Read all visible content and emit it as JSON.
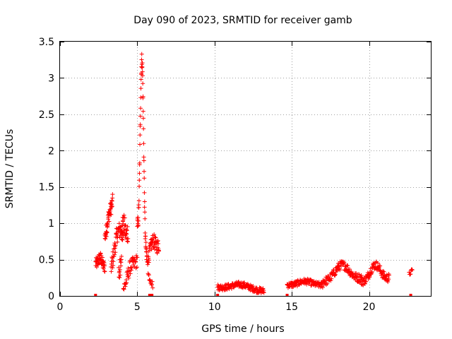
{
  "chart_data": {
    "type": "scatter",
    "title": "Day 090 of 2023, SRMTID for receiver gamb",
    "xlabel": "GPS time / hours",
    "ylabel": "SRMTID / TECUs",
    "xlim": [
      0,
      24
    ],
    "ylim": [
      0,
      3.5
    ],
    "x_ticks": [
      0,
      5,
      10,
      15,
      20
    ],
    "x_tick_labels": [
      "0",
      "5",
      "10",
      "15",
      "20"
    ],
    "y_ticks": [
      0,
      0.5,
      1,
      1.5,
      2,
      2.5,
      3,
      3.5
    ],
    "y_tick_labels": [
      "0",
      "0.5",
      "1",
      "1.5",
      "2",
      "2.5",
      "3",
      "3.5"
    ],
    "grid": true,
    "marker": "+",
    "color": "#ff0000",
    "zero_squares_x": [
      2.3,
      5.8,
      5.95,
      10.2,
      14.7,
      22.7
    ],
    "clusters": [
      {
        "name": "arc-1",
        "x_start": 2.3,
        "x_end": 2.9,
        "y_start": 0.45,
        "y_end": 0.4,
        "y_peak": 0.55,
        "spread": 0.08,
        "count": 50
      },
      {
        "name": "arc-2",
        "x_start": 2.9,
        "x_end": 3.4,
        "y_start": 0.8,
        "y_end": 1.3,
        "y_peak": 1.35,
        "spread": 0.1,
        "count": 45
      },
      {
        "name": "arc-3",
        "x_start": 3.3,
        "x_end": 4.1,
        "y_start": 0.4,
        "y_end": 1.0,
        "y_peak": 1.15,
        "spread": 0.12,
        "count": 55
      },
      {
        "name": "arc-4",
        "x_start": 3.8,
        "x_end": 4.4,
        "y_start": 0.3,
        "y_end": 0.9,
        "y_peak": 1.25,
        "spread": 0.15,
        "count": 45
      },
      {
        "name": "arc-5",
        "x_start": 4.1,
        "x_end": 5.0,
        "y_start": 0.1,
        "y_end": 0.5,
        "y_peak": 0.6,
        "spread": 0.1,
        "count": 45
      },
      {
        "name": "arc-6",
        "x_start": 5.0,
        "x_end": 5.6,
        "y_start": 1.0,
        "y_end": 0.6,
        "y_peak": 3.45,
        "spread": 0.1,
        "count": 65
      },
      {
        "name": "arc-7",
        "x_start": 5.6,
        "x_end": 6.4,
        "y_start": 0.5,
        "y_end": 0.7,
        "y_peak": 0.85,
        "spread": 0.1,
        "count": 55
      },
      {
        "name": "arc-8",
        "x_start": 5.7,
        "x_end": 6.0,
        "y_start": 0.3,
        "y_end": 0.15,
        "y_peak": 0.3,
        "spread": 0.05,
        "count": 12
      },
      {
        "name": "arc-9",
        "x_start": 10.2,
        "x_end": 13.2,
        "y_start": 0.12,
        "y_end": 0.07,
        "y_peak": 0.18,
        "spread": 0.04,
        "count": 150
      },
      {
        "name": "arc-10",
        "x_start": 14.7,
        "x_end": 17.0,
        "y_start": 0.15,
        "y_end": 0.15,
        "y_peak": 0.2,
        "spread": 0.04,
        "count": 110
      },
      {
        "name": "arc-11",
        "x_start": 17.0,
        "x_end": 19.5,
        "y_start": 0.2,
        "y_end": 0.25,
        "y_peak": 0.45,
        "spread": 0.06,
        "count": 120
      },
      {
        "name": "arc-12",
        "x_start": 19.5,
        "x_end": 21.3,
        "y_start": 0.2,
        "y_end": 0.25,
        "y_peak": 0.45,
        "spread": 0.06,
        "count": 90
      },
      {
        "name": "arc-13",
        "x_start": 22.6,
        "x_end": 22.8,
        "y_start": 0.3,
        "y_end": 0.35,
        "y_peak": 0.35,
        "spread": 0.03,
        "count": 8
      }
    ]
  }
}
